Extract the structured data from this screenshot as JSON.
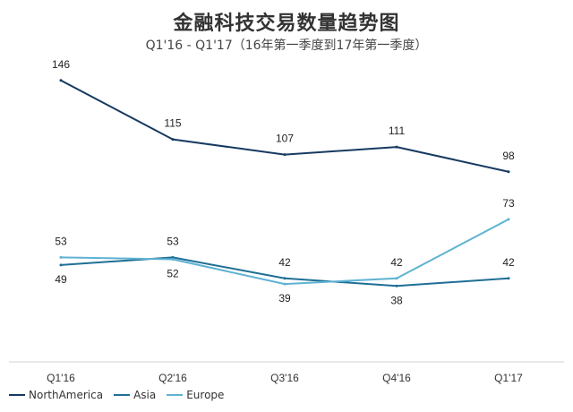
{
  "chart_data": {
    "type": "line",
    "title": "金融科技交易数量趋势图",
    "subtitle": "Q1'16 - Q1'17（16年第一季度到17年第一季度）",
    "categories": [
      "Q1'16",
      "Q2'16",
      "Q3'16",
      "Q4'16",
      "Q1'17"
    ],
    "series": [
      {
        "name": "NorthAmerica",
        "color": "#163a60",
        "values": [
          146,
          115,
          107,
          111,
          98
        ],
        "labels": [
          "146",
          "115",
          "107",
          "111",
          "98"
        ]
      },
      {
        "name": "Asia",
        "color": "#1f6f95",
        "values": [
          49,
          53,
          42,
          38,
          42
        ],
        "labels": [
          "49",
          "53",
          "42",
          "38",
          "42"
        ]
      },
      {
        "name": "Europe",
        "color": "#5fb2d3",
        "values": [
          53,
          52,
          39,
          42,
          73
        ],
        "labels": [
          "53",
          "52",
          "39",
          "42",
          "73"
        ]
      }
    ],
    "ylim": [
      0,
      160
    ],
    "grid": false,
    "legend_position": "bottom-left"
  }
}
